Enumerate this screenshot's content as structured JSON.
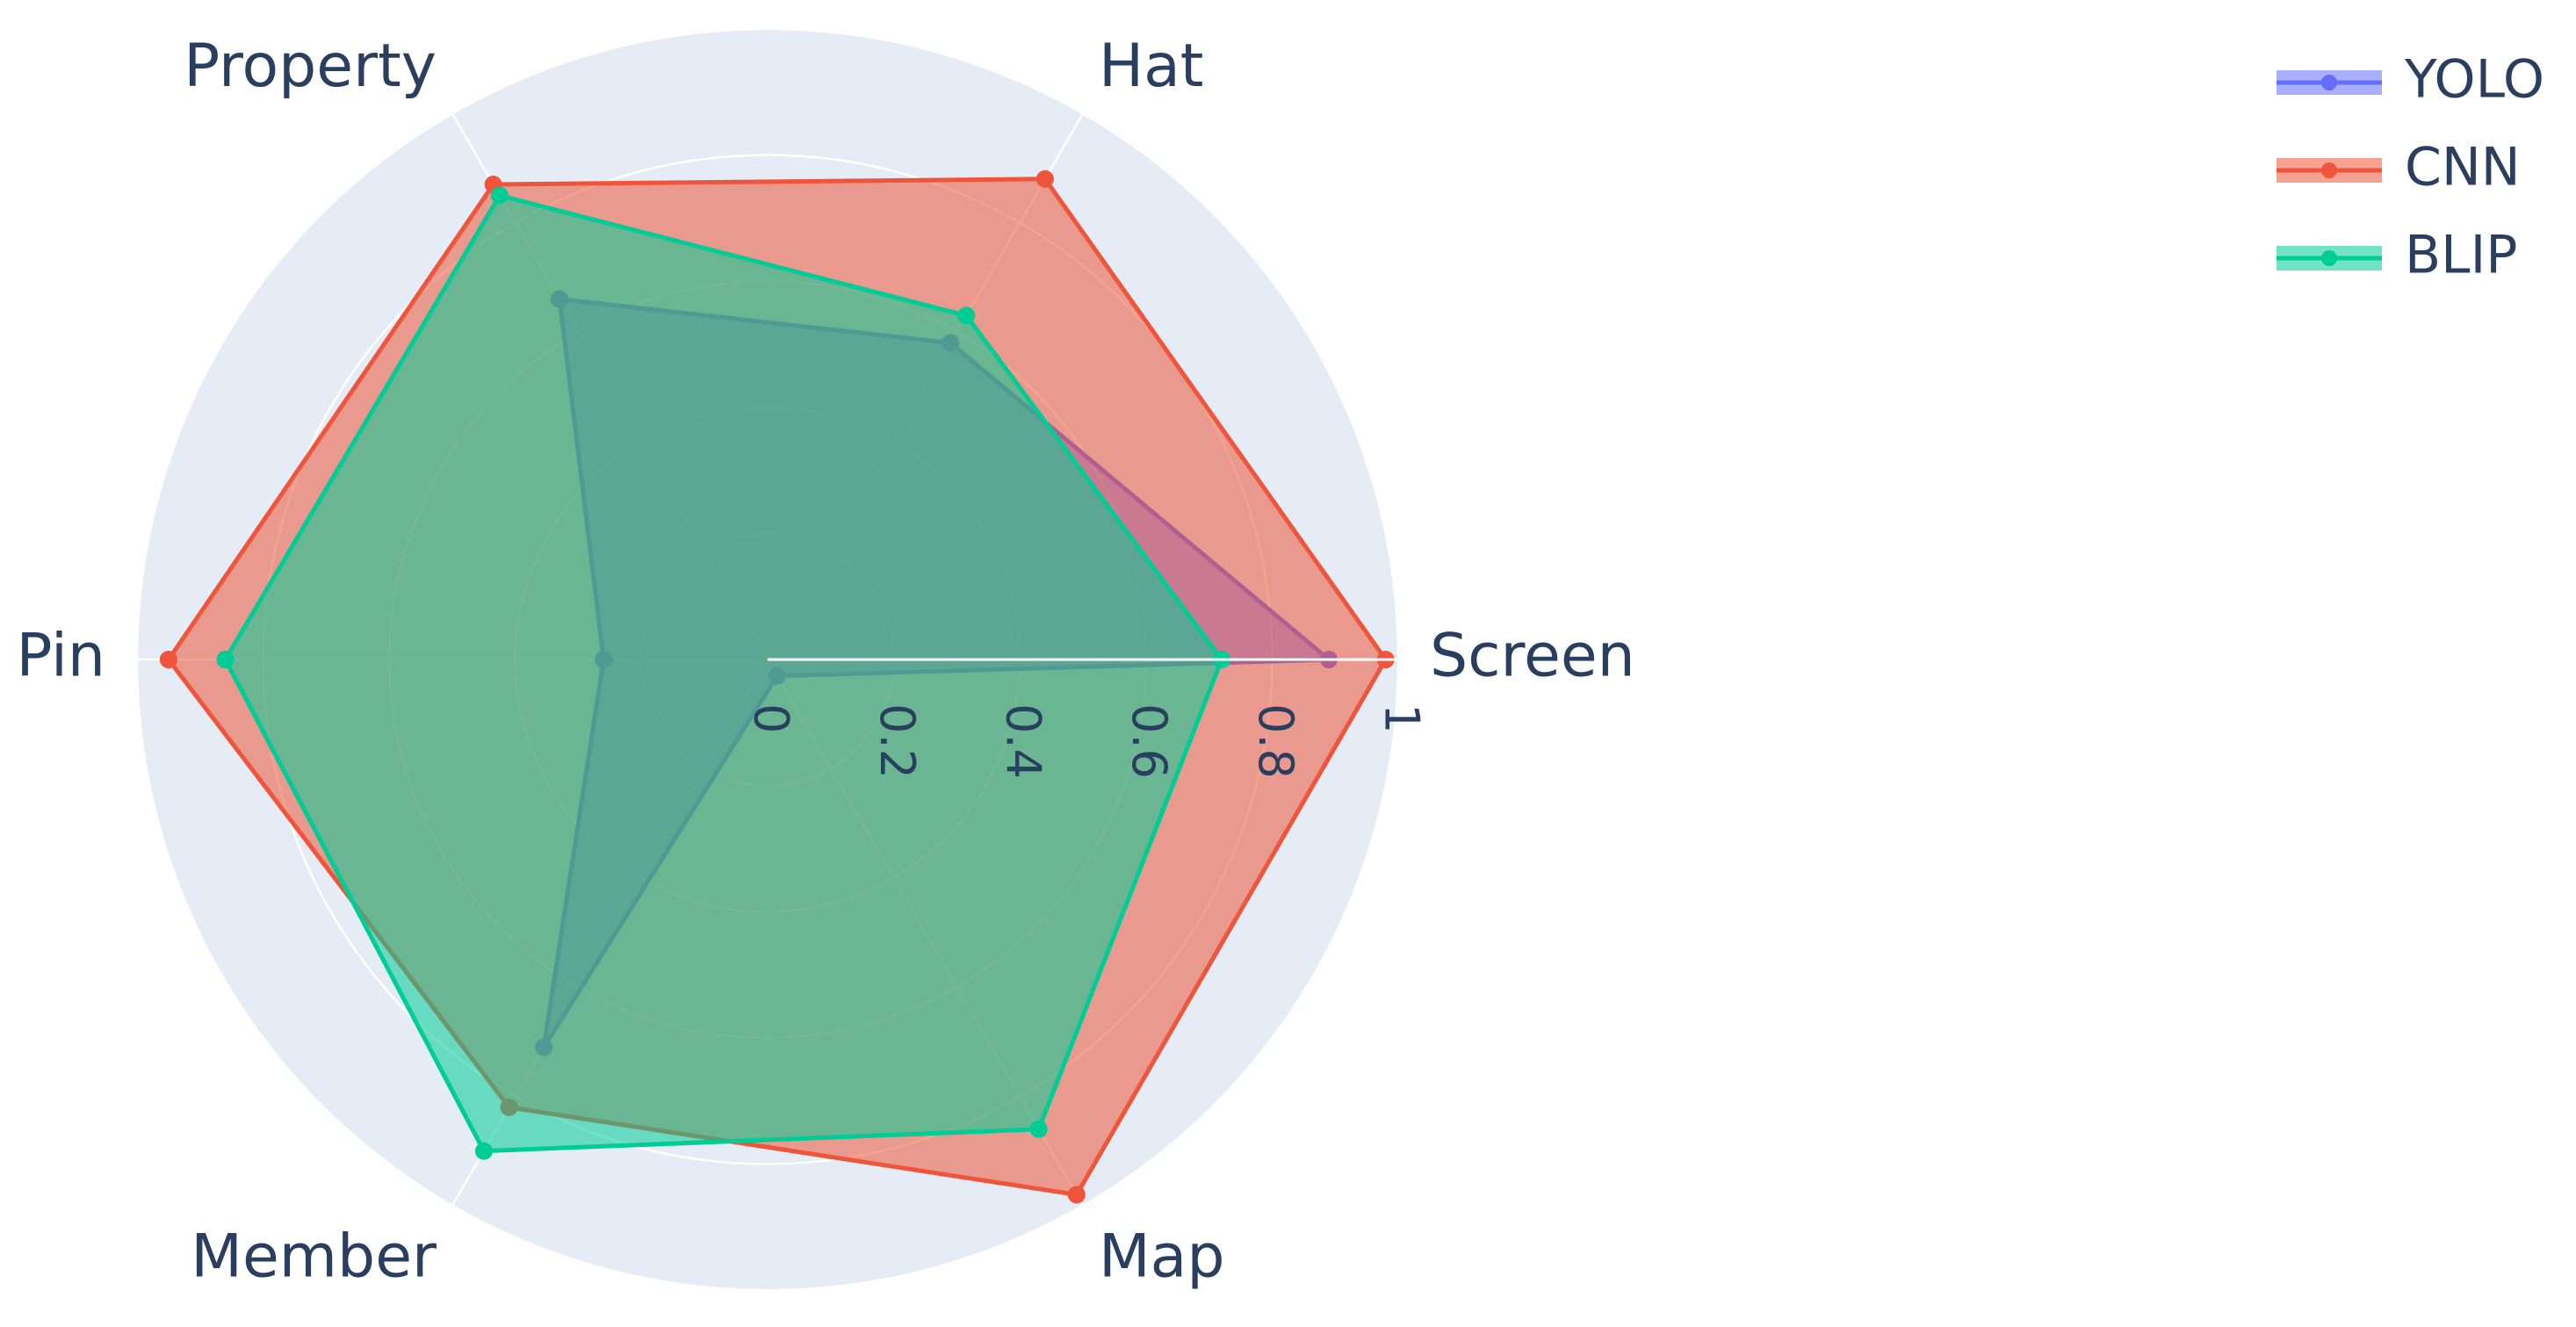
{
  "chart_data": {
    "type": "radar",
    "axes": [
      "Screen",
      "Hat",
      "Property",
      "Pin",
      "Member",
      "Map"
    ],
    "radial_ticks": [
      "0",
      "0.2",
      "0.4",
      "0.6",
      "0.8",
      "1"
    ],
    "range": [
      0,
      1
    ],
    "legend_position": "top-right",
    "series": [
      {
        "name": "YOLO",
        "color": "#636efa",
        "values": [
          0.89,
          0.58,
          0.66,
          0.26,
          0.71,
          0.03
        ]
      },
      {
        "name": "CNN",
        "color": "#ef553b",
        "values": [
          0.98,
          0.88,
          0.87,
          0.95,
          0.82,
          0.98
        ]
      },
      {
        "name": "BLIP",
        "color": "#00cc96",
        "values": [
          0.72,
          0.63,
          0.85,
          0.86,
          0.9,
          0.86
        ]
      }
    ]
  }
}
